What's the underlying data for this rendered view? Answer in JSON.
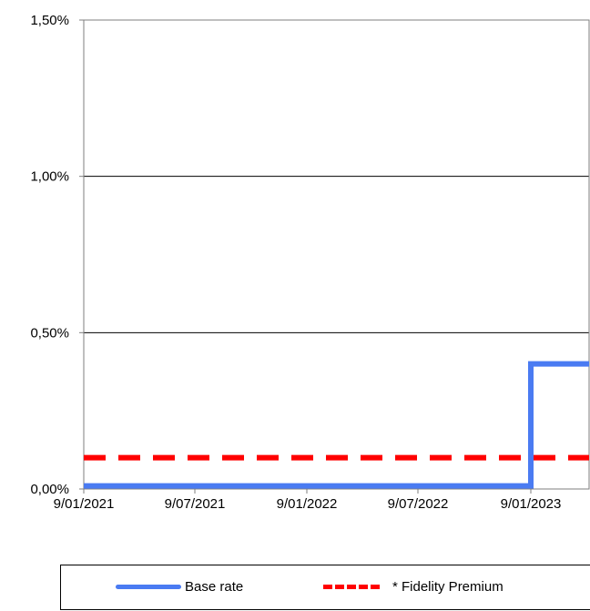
{
  "chart_data": {
    "type": "line",
    "x_ticks": [
      "9/01/2021",
      "9/07/2021",
      "9/01/2022",
      "9/07/2022",
      "9/01/2023"
    ],
    "y_ticks": [
      "0,00%",
      "0,50%",
      "1,00%",
      "1,50%"
    ],
    "ylim": [
      0,
      1.5
    ],
    "y_unit": "%",
    "grid": "horizontal",
    "legend_position": "bottom",
    "series": [
      {
        "name": "Base rate",
        "color": "#4a7bf2",
        "style": "solid",
        "step": true,
        "x": [
          "9/01/2021",
          "9/01/2023",
          "9/01/2023",
          "end"
        ],
        "values": [
          0.01,
          0.01,
          0.4,
          0.4
        ]
      },
      {
        "name": "* Fidelity Premium",
        "color": "#ff0000",
        "style": "dashed",
        "step": false,
        "x": [
          "9/01/2021",
          "end"
        ],
        "values": [
          0.1,
          0.1
        ]
      }
    ]
  }
}
